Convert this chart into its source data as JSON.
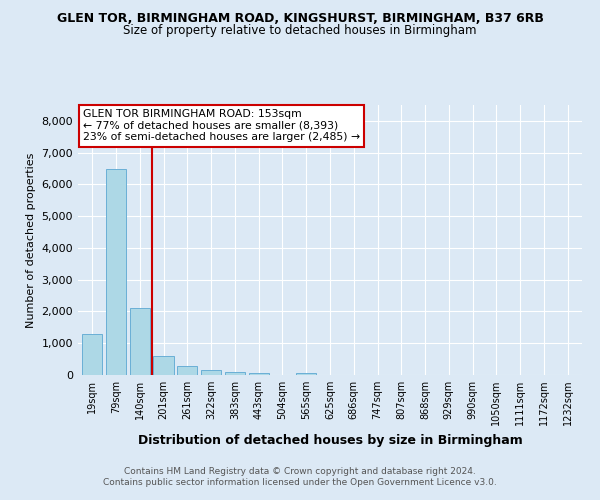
{
  "title1": "GLEN TOR, BIRMINGHAM ROAD, KINGSHURST, BIRMINGHAM, B37 6RB",
  "title2": "Size of property relative to detached houses in Birmingham",
  "xlabel": "Distribution of detached houses by size in Birmingham",
  "ylabel": "Number of detached properties",
  "categories": [
    "19sqm",
    "79sqm",
    "140sqm",
    "201sqm",
    "261sqm",
    "322sqm",
    "383sqm",
    "443sqm",
    "504sqm",
    "565sqm",
    "625sqm",
    "686sqm",
    "747sqm",
    "807sqm",
    "868sqm",
    "929sqm",
    "990sqm",
    "1050sqm",
    "1111sqm",
    "1172sqm",
    "1232sqm"
  ],
  "values": [
    1300,
    6500,
    2100,
    600,
    280,
    150,
    80,
    50,
    0,
    70,
    0,
    0,
    0,
    0,
    0,
    0,
    0,
    0,
    0,
    0,
    0
  ],
  "bar_color": "#add8e6",
  "bar_edge_color": "#6aafd6",
  "annotation_box_color": "#ffffff",
  "annotation_box_edge": "#cc0000",
  "vline_color": "#cc0000",
  "vline_x": 2.5,
  "annotation_title": "GLEN TOR BIRMINGHAM ROAD: 153sqm",
  "annotation_line1": "← 77% of detached houses are smaller (8,393)",
  "annotation_line2": "23% of semi-detached houses are larger (2,485) →",
  "ylim": [
    0,
    8500
  ],
  "yticks": [
    0,
    1000,
    2000,
    3000,
    4000,
    5000,
    6000,
    7000,
    8000
  ],
  "footer1": "Contains HM Land Registry data © Crown copyright and database right 2024.",
  "footer2": "Contains public sector information licensed under the Open Government Licence v3.0.",
  "bg_color": "#dce9f5",
  "plot_bg_color": "#dce9f5"
}
